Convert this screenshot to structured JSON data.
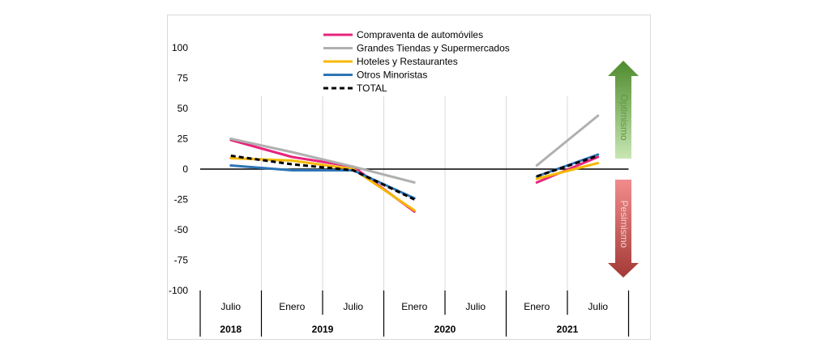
{
  "chart_data": {
    "type": "line",
    "title": "",
    "xlabel": "",
    "ylabel": "",
    "ylim": [
      -100,
      100
    ],
    "yticks": [
      100,
      75,
      50,
      25,
      0,
      -25,
      -50,
      -75,
      -100
    ],
    "grid": "vertical",
    "legend_position": "top-center",
    "x_periods": [
      "Julio",
      "Enero",
      "Julio",
      "Enero",
      "Julio",
      "Enero",
      "Julio"
    ],
    "x_years": [
      {
        "label": "2018",
        "span": 1
      },
      {
        "label": "2019",
        "span": 2
      },
      {
        "label": "2020",
        "span": 2
      },
      {
        "label": "2021",
        "span": 2
      }
    ],
    "series": [
      {
        "name": "Compraventa de automóviles",
        "color": "#e8247c",
        "dashed": false,
        "segments": [
          [
            [
              0,
              24
            ],
            [
              1,
              10
            ],
            [
              2,
              2
            ],
            [
              3,
              -35
            ]
          ],
          [
            [
              5,
              -11
            ],
            [
              6,
              10
            ]
          ]
        ]
      },
      {
        "name": "Grandes Tiendas y Supermercados",
        "color": "#b0b0b0",
        "dashed": false,
        "segments": [
          [
            [
              0,
              25
            ],
            [
              1,
              14
            ],
            [
              2,
              2
            ],
            [
              3,
              -11
            ]
          ],
          [
            [
              5,
              3
            ],
            [
              6,
              44
            ]
          ]
        ]
      },
      {
        "name": "Hoteles y Restaurantes",
        "color": "#f5b800",
        "dashed": false,
        "segments": [
          [
            [
              0,
              9
            ],
            [
              1,
              7
            ],
            [
              2,
              0
            ],
            [
              3,
              -34
            ]
          ],
          [
            [
              5,
              -8
            ],
            [
              6,
              5
            ]
          ]
        ]
      },
      {
        "name": "Otros Minoristas",
        "color": "#2e75b6",
        "dashed": false,
        "segments": [
          [
            [
              0,
              3
            ],
            [
              1,
              -1
            ],
            [
              2,
              -1
            ],
            [
              3,
              -24
            ]
          ],
          [
            [
              5,
              -6
            ],
            [
              6,
              12
            ]
          ]
        ]
      },
      {
        "name": "TOTAL",
        "color": "#000000",
        "dashed": true,
        "segments": [
          [
            [
              0,
              11
            ],
            [
              1,
              4
            ],
            [
              2,
              -1
            ],
            [
              3,
              -25
            ]
          ],
          [
            [
              5,
              -6
            ],
            [
              6,
              11
            ]
          ]
        ]
      }
    ],
    "annotations": [
      {
        "text": "Optimismo",
        "color": "#5a9e3a"
      },
      {
        "text": "Pesimismo",
        "color": "#c0504d"
      }
    ]
  }
}
